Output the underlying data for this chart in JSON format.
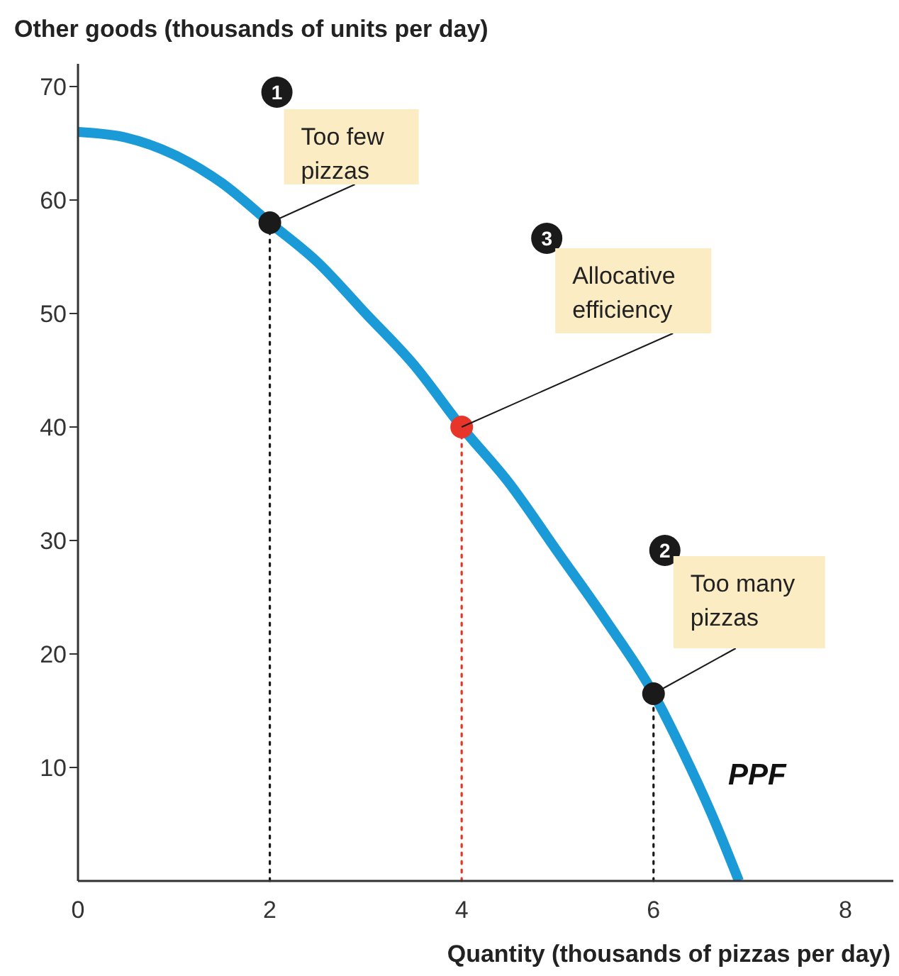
{
  "chart_data": {
    "type": "line",
    "xlabel": "Quantity (thousands of pizzas per day)",
    "ylabel": "Other goods (thousands of units per day)",
    "xlim": [
      0,
      8.5
    ],
    "xticks": [
      0,
      2,
      4,
      6,
      8
    ],
    "ylim": [
      0,
      72
    ],
    "yticks": [
      10,
      20,
      30,
      40,
      50,
      60,
      70
    ],
    "series": [
      {
        "color": "#1a9ad6",
        "line_style": "solid",
        "marker": "none",
        "x": [
          0,
          0.5,
          1,
          1.5,
          2,
          2.5,
          3,
          3.5,
          4,
          4.5,
          5,
          5.5,
          6,
          6.3,
          6.6,
          6.89
        ],
        "values": [
          66,
          65.5,
          64,
          61.5,
          58,
          54.5,
          50,
          45.5,
          40,
          35,
          29,
          23,
          16.5,
          11.5,
          6,
          0
        ]
      },
      {
        "type": "scatter",
        "marker": "circle",
        "x": [
          2,
          4,
          6
        ],
        "values": [
          58,
          40,
          16.5
        ],
        "colors": [
          "#1a1a1a",
          "#e8352a",
          "#1a1a1a"
        ]
      }
    ],
    "ref_lines": [
      {
        "axis": "x",
        "value": 2,
        "color": "#1a1a1a",
        "line_style": "dotted"
      },
      {
        "axis": "x",
        "value": 4,
        "color": "#e8352a",
        "line_style": "dotted"
      },
      {
        "axis": "x",
        "value": 6,
        "color": "#1a1a1a",
        "line_style": "dotted"
      }
    ],
    "annotations": [
      "1",
      {
        "text": "Too few pizzas",
        "x": 2,
        "y": 58
      },
      "3",
      {
        "text": "Allocative efficiency",
        "x": 4,
        "y": 40
      },
      "2",
      {
        "text": "Too many pizzas",
        "x": 6,
        "y": 16.5
      },
      {
        "text": "PPF",
        "x": 6.6,
        "y": 6
      }
    ]
  }
}
